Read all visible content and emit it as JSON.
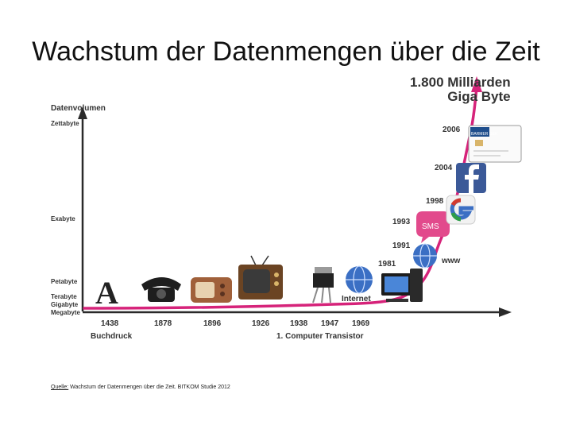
{
  "title": "Wachstum der Datenmengen über die Zeit",
  "y_axis": {
    "title": "Datenvolumen",
    "labels": [
      "Zettabyte",
      "Exabyte",
      "Petabyte",
      "Terabyte",
      "Gigabyte",
      "Megabyte"
    ]
  },
  "x_axis": {
    "years": [
      "1438",
      "1878",
      "1896",
      "1926",
      "1938",
      "1947",
      "1969"
    ],
    "notes": {
      "buchdruck": "Buchdruck",
      "transistor": "1. Computer Transistor"
    }
  },
  "milestones": {
    "years_right": [
      "1981",
      "1991",
      "1993",
      "1998",
      "2004",
      "2006"
    ],
    "internet": "Internet",
    "www": "www",
    "sms": "SMS",
    "book_letter": "A",
    "card_text": "BARMER GEK"
  },
  "peak": {
    "line1": "1.800 Milliarden",
    "line2": "Giga Byte"
  },
  "source": {
    "label": "Quelle:",
    "text": " Wachstum der Datenmengen über die Zeit. BITKOM Studie 2012"
  },
  "colors": {
    "curve": "#d6237a",
    "axis": "#2a2a2a"
  }
}
